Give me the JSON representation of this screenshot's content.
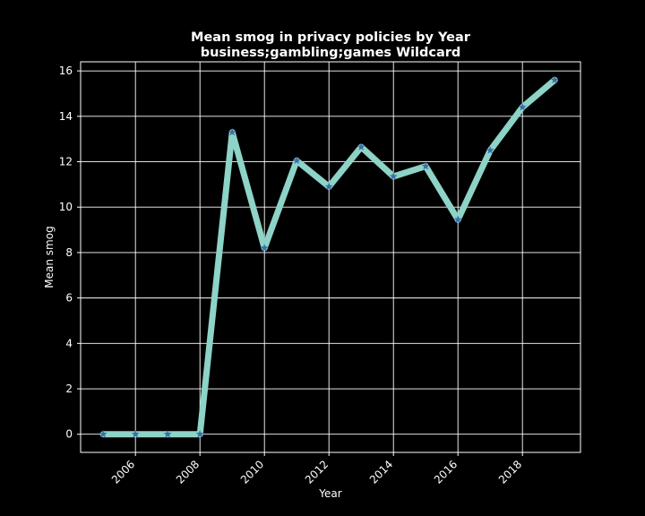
{
  "chart_data": {
    "type": "line",
    "title_line1": "Mean smog in privacy policies by Year",
    "title_line2": "business;gambling;games Wildcard",
    "xlabel": "Year",
    "ylabel": "Mean smog",
    "xlim": [
      2004.3,
      2019.8
    ],
    "ylim": [
      -0.8,
      16.4
    ],
    "x_ticks": [
      2006,
      2008,
      2010,
      2012,
      2014,
      2016,
      2018
    ],
    "y_ticks": [
      0,
      2,
      4,
      6,
      8,
      10,
      12,
      14,
      16
    ],
    "grid": true,
    "legend": "none",
    "colors": {
      "background": "#000000",
      "line": "#8dd3c7",
      "marker": "#3b6ea8",
      "text": "#ffffff",
      "grid": "#ffffff"
    },
    "marker": "star",
    "series": [
      {
        "x": [
          2005,
          2006,
          2007,
          2008,
          2009,
          2010,
          2011,
          2012,
          2013,
          2014,
          2015,
          2016,
          2017,
          2018,
          2019
        ],
        "values": [
          0,
          0,
          0,
          0,
          13.3,
          8.2,
          12.05,
          10.9,
          12.65,
          11.35,
          11.8,
          9.45,
          12.5,
          14.4,
          15.6
        ]
      }
    ]
  }
}
